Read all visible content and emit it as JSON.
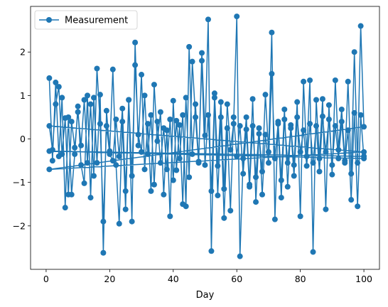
{
  "chart_data": {
    "type": "line",
    "title": "",
    "xlabel": "Day",
    "ylabel": "",
    "xlim": [
      -4.9,
      104.9
    ],
    "ylim": [
      -3.0,
      3.05
    ],
    "xticks": [
      0,
      20,
      40,
      60,
      80,
      100
    ],
    "yticks": [
      -2,
      -1,
      0,
      1,
      2
    ],
    "grid": false,
    "legend": {
      "position": "top-left",
      "entries": [
        "Measurement"
      ]
    },
    "series": [
      {
        "name": "Measurement",
        "color": "#1f77b4",
        "marker": "circle",
        "points": [
          [
            1,
            1.4
          ],
          [
            2,
            -0.5
          ],
          [
            3,
            1.3
          ],
          [
            4,
            -0.4
          ],
          [
            5,
            0.95
          ],
          [
            6,
            -1.58
          ],
          [
            7,
            0.5
          ],
          [
            8,
            -1.28
          ],
          [
            9,
            -0.35
          ],
          [
            10,
            0.75
          ],
          [
            11,
            -0.6
          ],
          [
            12,
            -1.02
          ],
          [
            13,
            1.0
          ],
          [
            14,
            -1.35
          ],
          [
            15,
            0.95
          ],
          [
            16,
            -0.55
          ],
          [
            17,
            1.02
          ],
          [
            18,
            -2.62
          ],
          [
            19,
            0.65
          ],
          [
            20,
            -0.28
          ],
          [
            21,
            1.6
          ],
          [
            22,
            -0.6
          ],
          [
            23,
            -1.95
          ],
          [
            24,
            0.4
          ],
          [
            25,
            -1.62
          ],
          [
            26,
            0.9
          ],
          [
            27,
            -1.9
          ],
          [
            28,
            2.22
          ],
          [
            29,
            -0.15
          ],
          [
            30,
            1.48
          ],
          [
            31,
            -0.7
          ],
          [
            32,
            0.35
          ],
          [
            33,
            -1.2
          ],
          [
            34,
            1.25
          ],
          [
            35,
            -0.05
          ],
          [
            36,
            0.62
          ],
          [
            37,
            -1.28
          ],
          [
            38,
            0.2
          ],
          [
            39,
            -1.78
          ],
          [
            40,
            0.88
          ],
          [
            41,
            -0.72
          ],
          [
            42,
            0.32
          ],
          [
            43,
            -1.5
          ],
          [
            44,
            0.95
          ],
          [
            45,
            -0.88
          ],
          [
            46,
            1.78
          ],
          [
            47,
            0.5
          ],
          [
            48,
            -0.55
          ],
          [
            49,
            1.98
          ],
          [
            50,
            0.08
          ],
          [
            51,
            2.75
          ],
          [
            52,
            -2.58
          ],
          [
            53,
            1.05
          ],
          [
            54,
            -0.62
          ],
          [
            55,
            0.85
          ],
          [
            56,
            -1.15
          ],
          [
            57,
            0.8
          ],
          [
            58,
            -0.25
          ],
          [
            59,
            0.35
          ],
          [
            60,
            2.82
          ],
          [
            61,
            -2.7
          ],
          [
            62,
            -0.45
          ],
          [
            63,
            0.5
          ],
          [
            64,
            -1.05
          ],
          [
            65,
            0.92
          ],
          [
            66,
            -1.45
          ],
          [
            67,
            0.12
          ],
          [
            68,
            -0.75
          ],
          [
            69,
            1.02
          ],
          [
            70,
            -0.3
          ],
          [
            71,
            2.45
          ],
          [
            72,
            -1.85
          ],
          [
            73,
            0.4
          ],
          [
            74,
            -0.95
          ],
          [
            75,
            0.68
          ],
          [
            76,
            -1.1
          ],
          [
            77,
            0.32
          ],
          [
            78,
            -0.6
          ],
          [
            79,
            0.85
          ],
          [
            80,
            -1.78
          ],
          [
            81,
            1.32
          ],
          [
            82,
            -0.4
          ],
          [
            83,
            1.35
          ],
          [
            84,
            -2.6
          ],
          [
            85,
            0.9
          ],
          [
            86,
            -0.45
          ],
          [
            87,
            0.92
          ],
          [
            88,
            -1.62
          ],
          [
            89,
            0.78
          ],
          [
            90,
            -0.82
          ],
          [
            91,
            1.35
          ],
          [
            92,
            -0.25
          ],
          [
            93,
            0.68
          ],
          [
            94,
            -0.5
          ],
          [
            95,
            1.32
          ],
          [
            96,
            -0.8
          ],
          [
            97,
            2.0
          ],
          [
            98,
            -0.55
          ],
          [
            99,
            2.6
          ],
          [
            100,
            0.28
          ],
          [
            1,
            -0.7
          ],
          [
            100,
            -0.3
          ],
          [
            1,
            0.3
          ],
          [
            2,
            -0.25
          ],
          [
            3,
            0.8
          ],
          [
            4,
            1.2
          ],
          [
            5,
            -0.35
          ],
          [
            6,
            0.48
          ],
          [
            7,
            -1.28
          ],
          [
            8,
            0.4
          ],
          [
            9,
            -0.2
          ],
          [
            10,
            0.62
          ],
          [
            11,
            -0.15
          ],
          [
            12,
            0.9
          ],
          [
            13,
            -0.55
          ],
          [
            14,
            0.8
          ],
          [
            15,
            -0.85
          ],
          [
            16,
            1.62
          ],
          [
            17,
            0.35
          ],
          [
            18,
            -1.9
          ],
          [
            19,
            0.3
          ],
          [
            20,
            -0.35
          ],
          [
            21,
            -0.5
          ],
          [
            22,
            0.45
          ],
          [
            23,
            -0.4
          ],
          [
            24,
            0.7
          ],
          [
            25,
            -1.2
          ],
          [
            26,
            0.9
          ],
          [
            27,
            -0.85
          ],
          [
            28,
            1.7
          ],
          [
            29,
            0.1
          ],
          [
            30,
            -0.3
          ],
          [
            31,
            1.0
          ],
          [
            32,
            -0.35
          ],
          [
            33,
            0.55
          ],
          [
            34,
            -1.05
          ],
          [
            35,
            0.4
          ],
          [
            36,
            -0.55
          ],
          [
            37,
            0.25
          ],
          [
            38,
            -0.7
          ],
          [
            39,
            0.45
          ],
          [
            40,
            -0.95
          ],
          [
            41,
            0.42
          ],
          [
            42,
            -0.45
          ],
          [
            43,
            0.55
          ],
          [
            44,
            -1.55
          ],
          [
            45,
            2.12
          ],
          [
            46,
            -0.35
          ],
          [
            47,
            0.8
          ],
          [
            48,
            -0.52
          ],
          [
            49,
            1.8
          ],
          [
            50,
            -0.6
          ],
          [
            51,
            0.55
          ],
          [
            52,
            -1.2
          ],
          [
            53,
            0.95
          ],
          [
            54,
            -1.3
          ],
          [
            55,
            0.5
          ],
          [
            56,
            -1.82
          ],
          [
            57,
            0.25
          ],
          [
            58,
            -1.65
          ],
          [
            59,
            0.5
          ],
          [
            60,
            -0.4
          ],
          [
            61,
            0.3
          ],
          [
            62,
            -0.8
          ],
          [
            63,
            0.22
          ],
          [
            64,
            -1.1
          ],
          [
            65,
            0.3
          ],
          [
            66,
            -0.88
          ],
          [
            67,
            0.25
          ],
          [
            68,
            -1.28
          ],
          [
            69,
            0.1
          ],
          [
            70,
            -0.55
          ],
          [
            71,
            1.5
          ],
          [
            72,
            -0.45
          ],
          [
            73,
            0.35
          ],
          [
            74,
            -1.35
          ],
          [
            75,
            0.45
          ],
          [
            76,
            -0.55
          ],
          [
            77,
            0.25
          ],
          [
            78,
            -0.85
          ],
          [
            79,
            0.5
          ],
          [
            80,
            -0.3
          ],
          [
            81,
            0.2
          ],
          [
            82,
            -0.62
          ],
          [
            83,
            0.35
          ],
          [
            84,
            -0.55
          ],
          [
            85,
            0.3
          ],
          [
            86,
            -0.75
          ],
          [
            87,
            0.52
          ],
          [
            88,
            -0.3
          ],
          [
            89,
            0.45
          ],
          [
            90,
            -0.6
          ],
          [
            91,
            0.3
          ],
          [
            92,
            -0.45
          ],
          [
            93,
            0.4
          ],
          [
            94,
            -0.55
          ],
          [
            95,
            0.2
          ],
          [
            96,
            -1.4
          ],
          [
            97,
            0.6
          ],
          [
            98,
            -1.55
          ],
          [
            99,
            0.55
          ],
          [
            100,
            -0.45
          ],
          [
            1,
            -0.28
          ],
          [
            100,
            -0.4
          ]
        ]
      }
    ]
  }
}
